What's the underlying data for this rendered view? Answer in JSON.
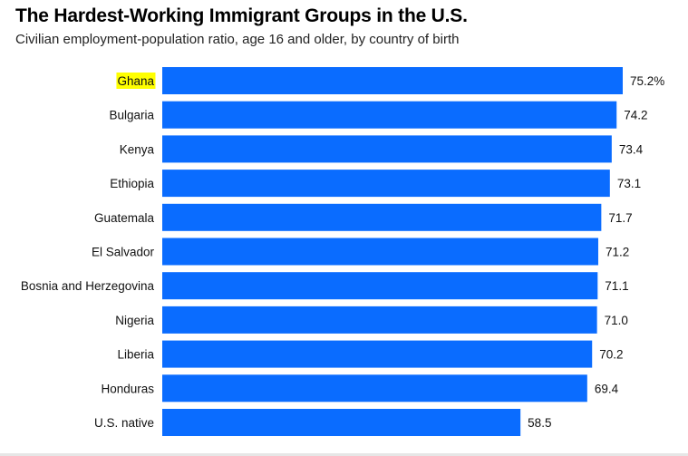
{
  "title": "The Hardest-Working Immigrant Groups in the U.S.",
  "subtitle": "Civilian employment-population ratio, age 16 and older, by country of birth",
  "chart_data": {
    "type": "bar",
    "orientation": "horizontal",
    "categories": [
      "Ghana",
      "Bulgaria",
      "Kenya",
      "Ethiopia",
      "Guatemala",
      "El Salvador",
      "Bosnia and Herzegovina",
      "Nigeria",
      "Liberia",
      "Honduras",
      "U.S. native"
    ],
    "values": [
      75.2,
      74.2,
      73.4,
      73.1,
      71.7,
      71.2,
      71.1,
      71.0,
      70.2,
      69.4,
      58.5
    ],
    "value_labels": [
      "75.2%",
      "74.2",
      "73.4",
      "73.1",
      "71.7",
      "71.2",
      "71.1",
      "71.0",
      "70.2",
      "69.4",
      "58.5"
    ],
    "highlighted_category": "Ghana",
    "xlim": [
      0,
      75.2
    ],
    "grid": false,
    "legend": "none"
  },
  "colors": {
    "bar": "#0a6cff",
    "highlight": "#ffff00",
    "text": "#111111"
  }
}
